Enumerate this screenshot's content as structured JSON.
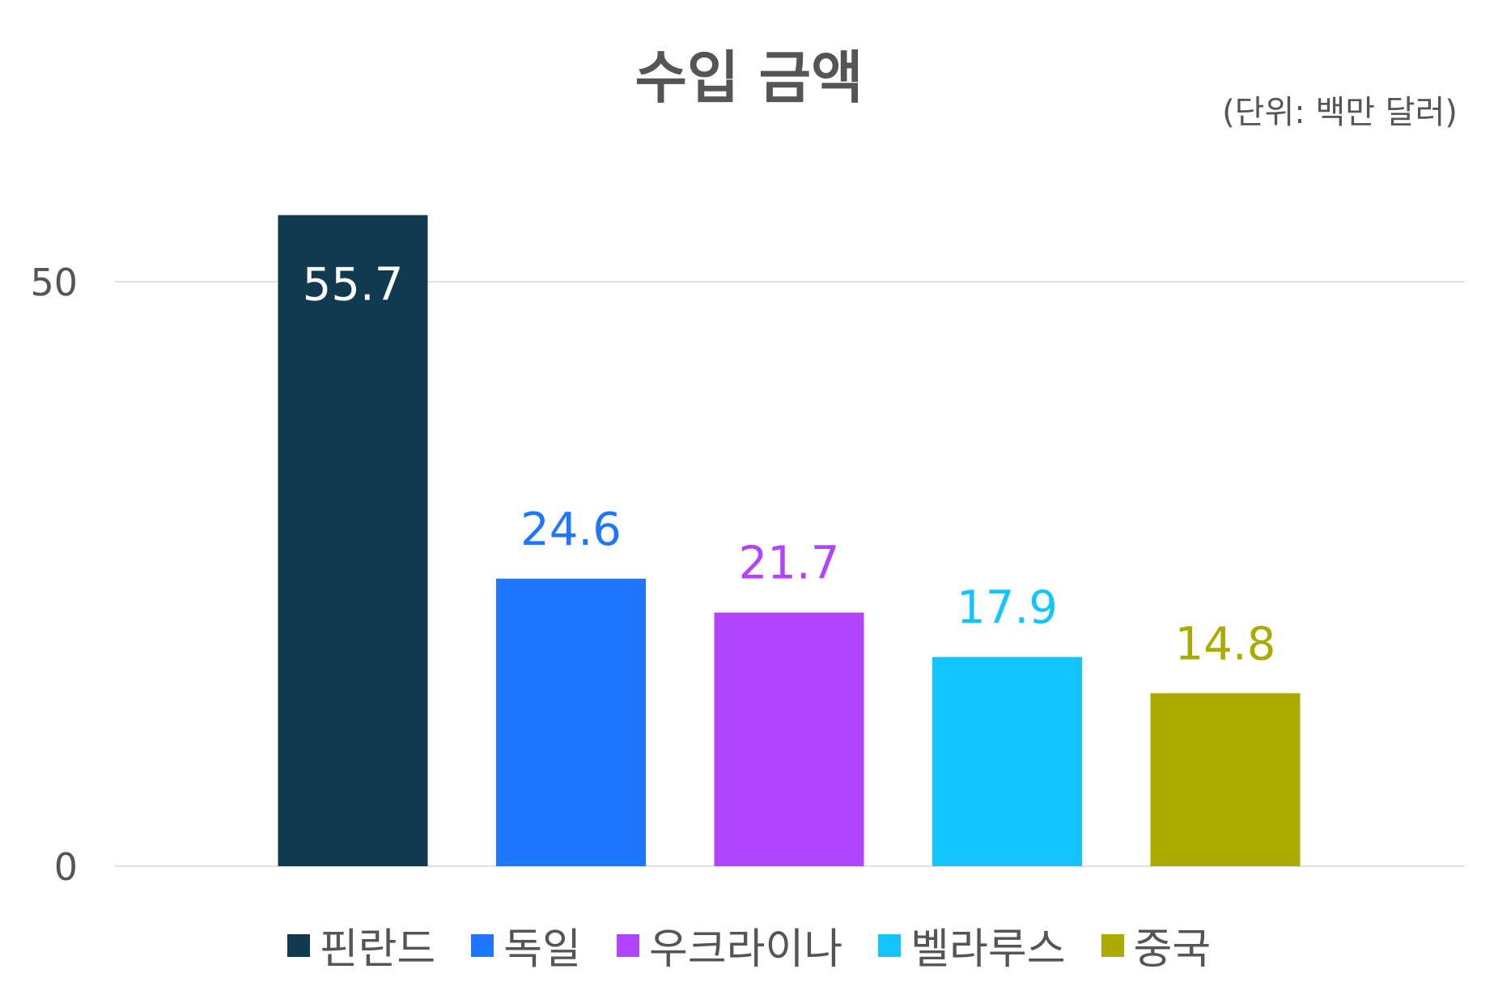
{
  "chart_data": {
    "type": "bar",
    "title": "수입 금액",
    "subtitle": "(단위: 백만 달러)",
    "categories": [
      "핀란드",
      "독일",
      "우크라이나",
      "벨라루스",
      "중국"
    ],
    "values": [
      55.7,
      24.6,
      21.7,
      17.9,
      14.8
    ],
    "value_labels": [
      "55.7",
      "24.6",
      "21.7",
      "17.9",
      "14.8"
    ],
    "colors": [
      "#103A4F",
      "#1F77FF",
      "#B044FF",
      "#12C5FF",
      "#AAAA00"
    ],
    "label_colors": [
      "#ffffff",
      "#1F77FF",
      "#B044FF",
      "#12C5FF",
      "#AAAA00"
    ],
    "yticks": [
      0,
      50
    ],
    "ytick_labels": [
      "0",
      "50"
    ],
    "ylim": [
      0,
      60
    ],
    "grid": true,
    "legend": "bottom"
  }
}
